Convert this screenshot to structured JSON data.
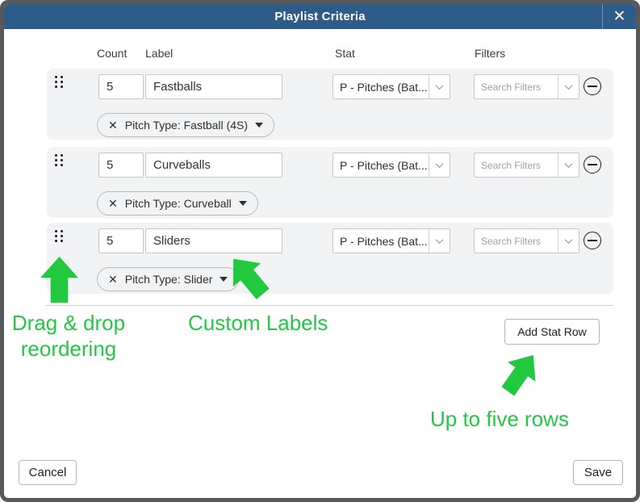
{
  "modal": {
    "title": "Playlist Criteria",
    "close_icon": "✕"
  },
  "columns": {
    "count": "Count",
    "label": "Label",
    "stat": "Stat",
    "filters": "Filters"
  },
  "rows": [
    {
      "count": "5",
      "label": "Fastballs",
      "stat": "P - Pitches (Bat...",
      "filters_placeholder": "Search Filters",
      "chip": "Pitch Type: Fastball (4S)",
      "chip_remove_icon": "✕"
    },
    {
      "count": "5",
      "label": "Curveballs",
      "stat": "P - Pitches (Bat...",
      "filters_placeholder": "Search Filters",
      "chip": "Pitch Type: Curveball",
      "chip_remove_icon": "✕"
    },
    {
      "count": "5",
      "label": "Sliders",
      "stat": "P - Pitches (Bat...",
      "filters_placeholder": "Search Filters",
      "chip": "Pitch Type: Slider",
      "chip_remove_icon": "✕"
    }
  ],
  "buttons": {
    "add_stat_row": "Add Stat Row",
    "cancel": "Cancel",
    "save": "Save"
  },
  "annotations": {
    "drag_line1": "Drag & drop",
    "drag_line2": "reordering",
    "custom_labels": "Custom Labels",
    "up_to_five": "Up to five rows"
  },
  "icons": {
    "drag_handle": "six-dot-grip",
    "stat_dropdown": "chevron-down",
    "filters_dropdown": "chevron-down",
    "remove_row": "minus-circle",
    "chip_caret": "caret-down-filled"
  },
  "colors": {
    "header_bg": "#2e5c8a",
    "frame_border": "#57585a",
    "row_bg": "#f2f3f4",
    "annotation_green": "#22c93f"
  }
}
